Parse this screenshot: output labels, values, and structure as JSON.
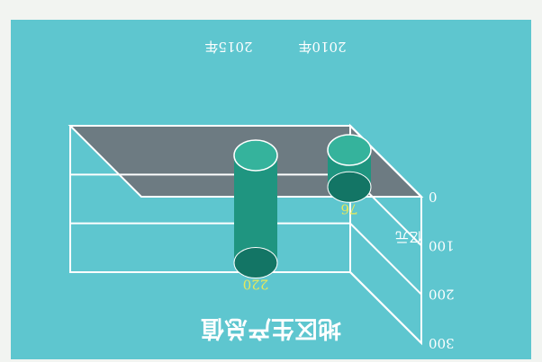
{
  "chart_data": {
    "type": "bar",
    "title": "地区生产总值",
    "unit": "亿元",
    "categories": [
      "2010年",
      "2015年"
    ],
    "values": [
      76,
      220
    ],
    "ylim": [
      0,
      300
    ],
    "yticks": [
      0,
      100,
      200,
      300
    ],
    "value_labels": [
      "76",
      "220"
    ],
    "orientation": "rotated 180°",
    "colors": {
      "panel": "#5ec6cf",
      "top_face": "#6d7b82",
      "frame": "#ffffff",
      "cylinder": "#1f9580",
      "cylinder_dark": "#137565",
      "cylinder_light": "#35b39c",
      "value_label": "#e8e85a"
    }
  }
}
